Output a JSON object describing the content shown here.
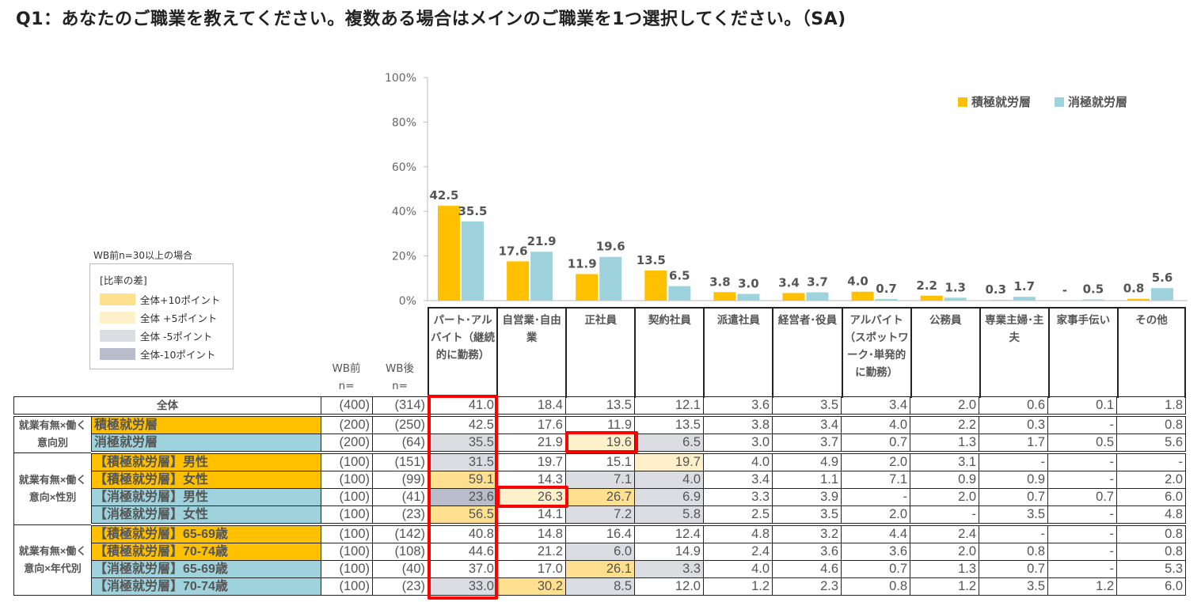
{
  "title": "Q1：あなたのご職業を教えてください。複数ある場合はメインのご職業を1つ選択してください。（SA)",
  "colors": {
    "series1": "#FFC000",
    "series2": "#9ED3DE",
    "plus10": "#FFE08F",
    "plus5": "#FFF0CC",
    "minus5": "#DCDDE2",
    "minus10": "#B9BCCB",
    "highlight_box": "#FF0000"
  },
  "chart_data": {
    "type": "bar",
    "categories": [
      "パート･アルバイト（継続的に勤務）",
      "自営業･自由業",
      "正社員",
      "契約社員",
      "派遣社員",
      "経営者･役員",
      "アルバイト（スポットワーク･単発的に勤務）",
      "公務員",
      "専業主婦･主夫",
      "家事手伝い",
      "その他"
    ],
    "series": [
      {
        "name": "積極就労層",
        "values": [
          42.5,
          17.6,
          11.9,
          13.5,
          3.8,
          3.4,
          4.0,
          2.2,
          0.3,
          null,
          0.8
        ],
        "labels": [
          "42.5",
          "17.6",
          "11.9",
          "13.5",
          "3.8",
          "3.4",
          "4.0",
          "2.2",
          "0.3",
          "-",
          "0.8"
        ]
      },
      {
        "name": "消極就労層",
        "values": [
          35.5,
          21.9,
          19.6,
          6.5,
          3.0,
          3.7,
          0.7,
          1.3,
          1.7,
          0.5,
          5.6
        ],
        "labels": [
          "35.5",
          "21.9",
          "19.6",
          "6.5",
          "3.0",
          "3.7",
          "0.7",
          "1.3",
          "1.7",
          "0.5",
          "5.6"
        ]
      }
    ],
    "ylim": [
      0,
      100
    ],
    "yticks": [
      "0%",
      "20%",
      "40%",
      "60%",
      "80%",
      "100%"
    ],
    "legend_position": "top-right",
    "grid": false
  },
  "legend_diff": {
    "note": "WB前n=30以上の場合",
    "title": "[比率の差]",
    "items": [
      "全体+10ポイント",
      "全体 +5ポイント",
      "全体 -5ポイント",
      "全体-10ポイント"
    ]
  },
  "table": {
    "wb_before": "WB前",
    "wb_after": "WB後",
    "n_label": "n=",
    "columns": [
      "パート･アルバイト（継続的に勤務）",
      "自営業･自由業",
      "正社員",
      "契約社員",
      "派遣社員",
      "経営者･役員",
      "アルバイト（スポットワーク･単発的に勤務）",
      "公務員",
      "専業主婦･主夫",
      "家事手伝い",
      "その他"
    ],
    "total": {
      "label": "全体",
      "n_before": "(400)",
      "n_after": "(314)",
      "values": [
        "41.0",
        "18.4",
        "13.5",
        "12.1",
        "3.6",
        "3.5",
        "3.4",
        "2.0",
        "0.6",
        "0.1",
        "1.8"
      ]
    },
    "groups": [
      {
        "label": "就業有無×働く意向別",
        "rows": [
          {
            "label": "積極就労層",
            "type": "o",
            "n_before": "(200)",
            "n_after": "(250)",
            "values": [
              "42.5",
              "17.6",
              "11.9",
              "13.5",
              "3.8",
              "3.4",
              "4.0",
              "2.2",
              "0.3",
              "-",
              "0.8"
            ],
            "shade": [
              "",
              "",
              "",
              "",
              "",
              "",
              "",
              "",
              "",
              "",
              ""
            ]
          },
          {
            "label": "消極就労層",
            "type": "b",
            "n_before": "(200)",
            "n_after": "(64)",
            "values": [
              "35.5",
              "21.9",
              "19.6",
              "6.5",
              "3.0",
              "3.7",
              "0.7",
              "1.3",
              "1.7",
              "0.5",
              "5.6"
            ],
            "shade": [
              "m5",
              "",
              "p5",
              "m5",
              "",
              "",
              "",
              "",
              "",
              "",
              ""
            ]
          }
        ]
      },
      {
        "label": "就業有無×働く意向×性別",
        "rows": [
          {
            "label": "【積極就労層】男性",
            "type": "o",
            "n_before": "(100)",
            "n_after": "(151)",
            "values": [
              "31.5",
              "19.7",
              "15.1",
              "19.7",
              "4.0",
              "4.9",
              "2.0",
              "3.1",
              "-",
              "-",
              "-"
            ],
            "shade": [
              "m5",
              "",
              "",
              "p5",
              "",
              "",
              "",
              "",
              "",
              "",
              ""
            ]
          },
          {
            "label": "【積極就労層】女性",
            "type": "o",
            "n_before": "(100)",
            "n_after": "(99)",
            "values": [
              "59.1",
              "14.3",
              "7.1",
              "4.0",
              "3.4",
              "1.1",
              "7.1",
              "0.9",
              "0.9",
              "-",
              "2.0"
            ],
            "shade": [
              "p10",
              "",
              "m5",
              "m5",
              "",
              "",
              "",
              "",
              "",
              "",
              ""
            ]
          },
          {
            "label": "【消極就労層】男性",
            "type": "b",
            "n_before": "(100)",
            "n_after": "(41)",
            "values": [
              "23.6",
              "26.3",
              "26.7",
              "6.9",
              "3.3",
              "3.9",
              "-",
              "2.0",
              "0.7",
              "0.7",
              "6.0"
            ],
            "shade": [
              "m10",
              "p5",
              "p10",
              "m5",
              "",
              "",
              "",
              "",
              "",
              "",
              ""
            ]
          },
          {
            "label": "【消極就労層】女性",
            "type": "b",
            "n_before": "(100)",
            "n_after": "(23)",
            "values": [
              "56.5",
              "14.1",
              "7.2",
              "5.8",
              "2.5",
              "3.5",
              "2.0",
              "-",
              "3.5",
              "-",
              "4.8"
            ],
            "shade": [
              "p10",
              "",
              "m5",
              "m5",
              "",
              "",
              "",
              "",
              "",
              "",
              ""
            ]
          }
        ]
      },
      {
        "label": "就業有無×働く意向×年代別",
        "rows": [
          {
            "label": "【積極就労層】65-69歳",
            "type": "o",
            "n_before": "(100)",
            "n_after": "(142)",
            "values": [
              "40.8",
              "14.8",
              "16.4",
              "12.4",
              "4.8",
              "3.2",
              "4.4",
              "2.4",
              "-",
              "-",
              "0.8"
            ],
            "shade": [
              "",
              "",
              "",
              "",
              "",
              "",
              "",
              "",
              "",
              "",
              ""
            ]
          },
          {
            "label": "【積極就労層】70-74歳",
            "type": "o",
            "n_before": "(100)",
            "n_after": "(108)",
            "values": [
              "44.6",
              "21.2",
              "6.0",
              "14.9",
              "2.4",
              "3.6",
              "3.6",
              "2.0",
              "0.8",
              "-",
              "0.8"
            ],
            "shade": [
              "",
              "",
              "m5",
              "",
              "",
              "",
              "",
              "",
              "",
              "",
              ""
            ]
          },
          {
            "label": "【消極就労層】65-69歳",
            "type": "b",
            "n_before": "(100)",
            "n_after": "(40)",
            "values": [
              "37.0",
              "17.0",
              "26.1",
              "3.3",
              "4.0",
              "4.6",
              "0.7",
              "1.3",
              "0.7",
              "-",
              "5.3"
            ],
            "shade": [
              "",
              "",
              "p10",
              "m5",
              "",
              "",
              "",
              "",
              "",
              "",
              ""
            ]
          },
          {
            "label": "【消極就労層】70-74歳",
            "type": "b",
            "n_before": "(100)",
            "n_after": "(23)",
            "values": [
              "33.0",
              "30.2",
              "8.5",
              "12.0",
              "1.2",
              "2.3",
              "0.8",
              "1.2",
              "3.5",
              "1.2",
              "6.0"
            ],
            "shade": [
              "m5",
              "p10",
              "m5",
              "",
              "",
              "",
              "",
              "",
              "",
              "",
              ""
            ]
          }
        ]
      }
    ]
  }
}
